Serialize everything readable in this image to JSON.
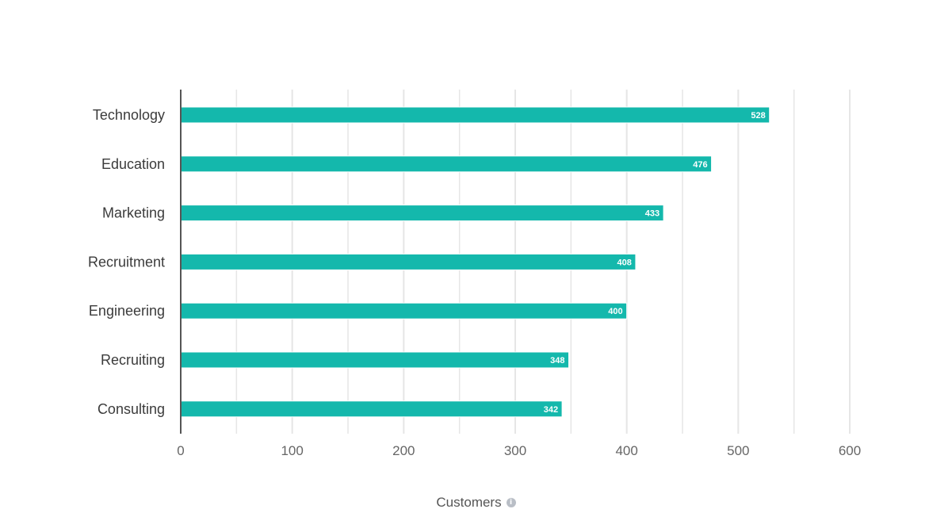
{
  "colors": {
    "bar": "#14b8ac",
    "grid": "#e6e6e6",
    "axis": "#555555"
  },
  "icons": {
    "x_title_icon": "info-icon"
  },
  "chart_data": {
    "type": "bar",
    "orientation": "horizontal",
    "categories": [
      "Technology",
      "Education",
      "Marketing",
      "Recruitment",
      "Engineering",
      "Recruiting",
      "Consulting"
    ],
    "values": [
      528,
      476,
      433,
      408,
      400,
      348,
      342
    ],
    "data_labels": [
      "528",
      "476",
      "433",
      "408",
      "400",
      "348",
      "342"
    ],
    "title": "",
    "xlabel": "Customers",
    "ylabel": "",
    "xlim": [
      0,
      600
    ],
    "ticks": [
      0,
      100,
      200,
      300,
      400,
      500,
      600
    ],
    "tick_labels": [
      "0",
      "100",
      "200",
      "300",
      "400",
      "500",
      "600"
    ],
    "minor_gridlines": [
      50,
      150,
      250,
      350,
      450,
      550
    ],
    "grid": true,
    "legend": "none"
  }
}
